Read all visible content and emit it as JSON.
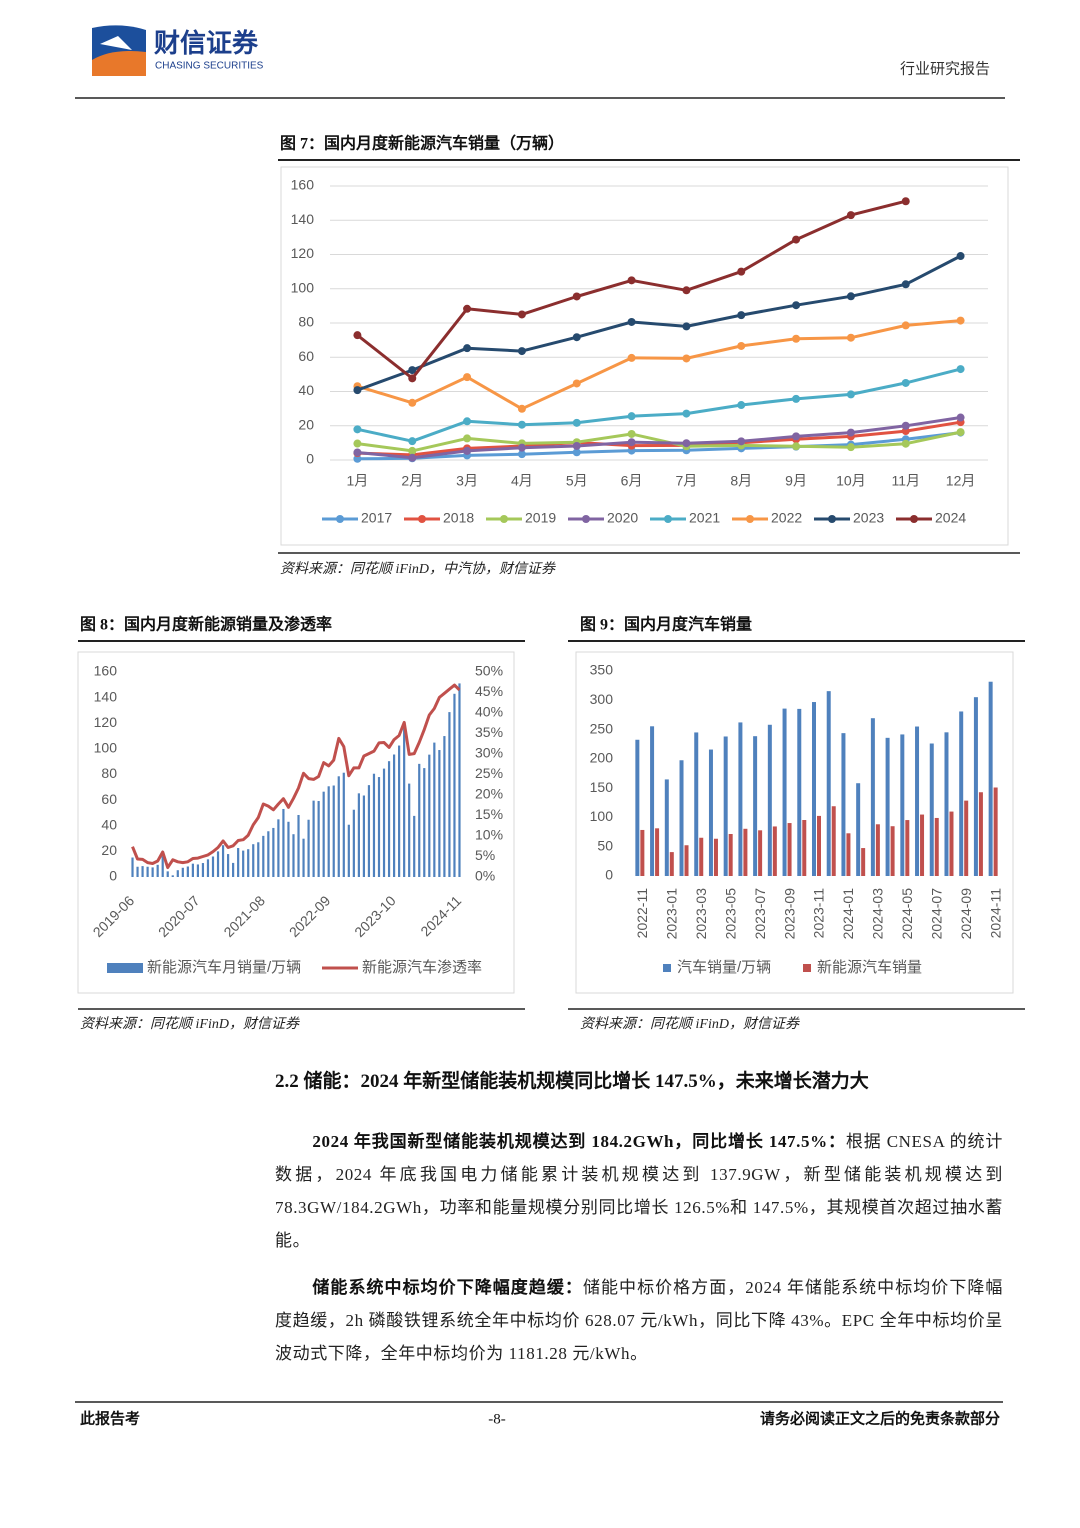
{
  "header": {
    "logo_cn": "财信证券",
    "logo_en": "CHASING SECURITIES",
    "report_type": "行业研究报告"
  },
  "chart_data": [
    {
      "type": "line",
      "title": "图 7：国内月度新能源汽车销量（万辆）",
      "source": "资料来源：同花顺 iFinD，中汽协，财信证券",
      "categories": [
        "1月",
        "2月",
        "3月",
        "4月",
        "5月",
        "6月",
        "7月",
        "8月",
        "9月",
        "10月",
        "11月",
        "12月"
      ],
      "ylim": [
        0,
        160
      ],
      "yticks": [
        0,
        20,
        40,
        60,
        80,
        100,
        120,
        140,
        160
      ],
      "grid": true,
      "legend": "bottom",
      "series": [
        {
          "name": "2017",
          "color": "#5b9bd5",
          "values": [
            0.7,
            1.0,
            2.7,
            3.4,
            4.5,
            5.5,
            5.7,
            6.8,
            7.8,
            9.0,
            12.1,
            16.0
          ]
        },
        {
          "name": "2018",
          "color": "#e15241",
          "values": [
            4.0,
            3.0,
            6.8,
            8.2,
            10.2,
            8.4,
            8.5,
            10.1,
            12.1,
            13.8,
            16.9,
            22.1
          ]
        },
        {
          "name": "2019",
          "color": "#a5c85a",
          "values": [
            9.6,
            5.3,
            12.6,
            9.7,
            10.4,
            15.2,
            8.0,
            8.5,
            8.0,
            7.5,
            9.5,
            16.3
          ]
        },
        {
          "name": "2020",
          "color": "#8064a2",
          "values": [
            4.4,
            1.3,
            5.3,
            7.2,
            8.2,
            10.4,
            9.8,
            10.9,
            13.8,
            16.0,
            20.0,
            24.8
          ]
        },
        {
          "name": "2021",
          "color": "#4bacc6",
          "values": [
            17.9,
            11.0,
            22.6,
            20.6,
            21.7,
            25.6,
            27.1,
            32.1,
            35.7,
            38.3,
            45.0,
            53.1
          ]
        },
        {
          "name": "2022",
          "color": "#f79646",
          "values": [
            43.1,
            33.4,
            48.4,
            29.9,
            44.7,
            59.6,
            59.3,
            66.6,
            70.8,
            71.4,
            78.6,
            81.4
          ]
        },
        {
          "name": "2023",
          "color": "#264a6e",
          "values": [
            40.8,
            52.5,
            65.3,
            63.6,
            71.7,
            80.6,
            78.0,
            84.6,
            90.4,
            95.6,
            102.6,
            119.1
          ]
        },
        {
          "name": "2024",
          "color": "#8b2e2e",
          "values": [
            72.9,
            47.7,
            88.3,
            85.0,
            95.5,
            104.9,
            99.1,
            110.0,
            128.7,
            143.0,
            151.1,
            null
          ]
        }
      ]
    },
    {
      "type": "bar_line",
      "title": "图 8：国内月度新能源销量及渗透率",
      "source": "资料来源：同花顺 iFinD，财信证券",
      "categories": [
        "2019-06",
        null,
        null,
        null,
        null,
        null,
        null,
        null,
        null,
        null,
        null,
        null,
        null,
        "2020-07",
        null,
        null,
        null,
        null,
        null,
        null,
        null,
        null,
        null,
        null,
        null,
        null,
        "2021-08",
        null,
        null,
        null,
        null,
        null,
        null,
        null,
        null,
        null,
        null,
        null,
        null,
        "2022-09",
        null,
        null,
        null,
        null,
        null,
        null,
        null,
        null,
        null,
        null,
        null,
        null,
        "2023-10",
        null,
        null,
        null,
        null,
        null,
        null,
        null,
        null,
        null,
        null,
        null,
        null,
        "2024-11"
      ],
      "ylim": [
        0,
        160
      ],
      "yticks": [
        0,
        20,
        40,
        60,
        80,
        100,
        120,
        140,
        160
      ],
      "y2lim": [
        0,
        50
      ],
      "y2ticks": [
        {
          "value": 0,
          "label": "0%"
        },
        {
          "value": 5,
          "label": "5%"
        },
        {
          "value": 10,
          "label": "10%"
        },
        {
          "value": 15,
          "label": "15%"
        },
        {
          "value": 20,
          "label": "20%"
        },
        {
          "value": 25,
          "label": "25%"
        },
        {
          "value": 30,
          "label": "30%"
        },
        {
          "value": 35,
          "label": "35%"
        },
        {
          "value": 40,
          "label": "40%"
        },
        {
          "value": 45,
          "label": "45%"
        },
        {
          "value": 50,
          "label": "50%"
        }
      ],
      "legend": "bottom",
      "series": [
        {
          "name": "新能源汽车月销量/万辆",
          "color": "#4f81bd",
          "values": [
            15.2,
            8.0,
            8.5,
            8.0,
            7.5,
            9.5,
            16.3,
            4.4,
            1.3,
            5.3,
            7.2,
            8.2,
            10.4,
            9.8,
            10.9,
            13.8,
            16.0,
            20.0,
            24.8,
            17.9,
            11.0,
            22.6,
            20.6,
            21.7,
            25.6,
            27.1,
            32.1,
            35.7,
            38.3,
            45.0,
            53.1,
            43.1,
            33.4,
            48.4,
            29.9,
            44.7,
            59.6,
            59.3,
            66.6,
            70.8,
            71.4,
            78.6,
            81.4,
            40.8,
            52.5,
            65.3,
            63.6,
            71.7,
            80.6,
            78.0,
            84.6,
            90.4,
            95.6,
            102.6,
            119.1,
            72.9,
            47.7,
            88.3,
            85.0,
            95.5,
            104.9,
            99.1,
            110.0,
            128.7,
            143.0,
            151.1
          ]
        },
        {
          "name": "新能源汽车渗透率",
          "color": "#c0504d",
          "axis": "y2",
          "values": [
            7.4,
            4.4,
            4.3,
            3.5,
            3.3,
            3.9,
            6.1,
            2.3,
            4.2,
            3.7,
            3.5,
            3.7,
            4.5,
            4.6,
            5.0,
            5.4,
            6.2,
            7.2,
            8.8,
            7.2,
            7.6,
            8.9,
            9.1,
            10.2,
            12.7,
            14.5,
            17.8,
            17.3,
            16.4,
            17.8,
            19.1,
            17.0,
            19.2,
            21.7,
            25.3,
            24.0,
            23.8,
            24.5,
            27.9,
            27.1,
            28.5,
            33.8,
            31.8,
            24.7,
            26.6,
            26.6,
            29.5,
            30.1,
            30.7,
            32.7,
            32.8,
            31.6,
            33.5,
            34.5,
            37.7,
            29.9,
            30.1,
            32.8,
            36.0,
            39.5,
            41.1,
            43.8,
            44.8,
            45.8,
            46.8,
            45.6
          ]
        }
      ]
    },
    {
      "type": "bar",
      "title": "图 9：国内月度汽车销量",
      "source": "资料来源：同花顺 iFinD，财信证券",
      "categories": [
        "2022-11",
        null,
        "2023-01",
        null,
        "2023-03",
        null,
        "2023-05",
        null,
        "2023-07",
        null,
        "2023-09",
        null,
        "2023-11",
        null,
        "2024-01",
        null,
        "2024-03",
        null,
        "2024-05",
        null,
        "2024-07",
        null,
        "2024-09",
        null,
        "2024-11"
      ],
      "ylim": [
        0,
        350
      ],
      "yticks": [
        0,
        50,
        100,
        150,
        200,
        250,
        300,
        350
      ],
      "legend": "bottom",
      "series": [
        {
          "name": "汽车销量/万辆",
          "color": "#4f81bd",
          "values": [
            232.6,
            255.6,
            164.9,
            197.6,
            245.1,
            215.9,
            238.2,
            262.2,
            238.7,
            258.2,
            285.8,
            285.3,
            297.0,
            315.6,
            243.9,
            158.4,
            269.4,
            235.9,
            241.7,
            255.2,
            226.2,
            245.3,
            280.9,
            305.3,
            331.7
          ]
        },
        {
          "name": "新能源汽车销量",
          "color": "#c0504d",
          "values": [
            78.6,
            81.4,
            40.8,
            52.5,
            65.3,
            63.6,
            71.7,
            80.6,
            78.0,
            84.6,
            90.4,
            95.6,
            102.6,
            119.1,
            72.9,
            47.7,
            88.3,
            85.0,
            95.5,
            104.9,
            99.1,
            110.0,
            128.7,
            143.0,
            151.1
          ]
        }
      ]
    }
  ],
  "section": {
    "heading": "2.2 储能：2024 年新型储能装机规模同比增长 147.5%，未来增长潜力大",
    "paragraphs": [
      {
        "lead": "2024 年我国新型储能装机规模达到 184.2GWh，同比增长 147.5%：",
        "text": "根据 CNESA 的统计数据，2024 年底我国电力储能累计装机规模达到 137.9GW，新型储能装机规模达到 78.3GW/184.2GWh，功率和能量规模分别同比增长 126.5%和 147.5%，其规模首次超过抽水蓄能。"
      },
      {
        "lead": "储能系统中标均价下降幅度趋缓：",
        "text": "储能中标价格方面，2024 年储能系统中标均价下降幅度趋缓，2h 磷酸铁锂系统全年中标均价 628.07 元/kWh，同比下降 43%。EPC 全年中标均价呈波动式下降，全年中标均价为 1181.28 元/kWh。"
      }
    ]
  },
  "footer": {
    "left": "此报告考",
    "page": "-8-",
    "right": "请务必阅读正文之后的免责条款部分"
  }
}
